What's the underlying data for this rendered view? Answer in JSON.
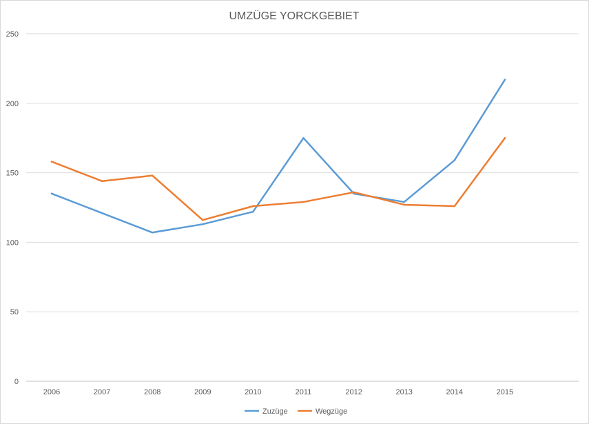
{
  "chart_data": {
    "type": "line",
    "title": "UMZÜGE YORCKGEBIET",
    "categories": [
      "2006",
      "2007",
      "2008",
      "2009",
      "2010",
      "2011",
      "2012",
      "2013",
      "2014",
      "2015"
    ],
    "ylim": [
      0,
      250
    ],
    "yticks": [
      0,
      50,
      100,
      150,
      200,
      250
    ],
    "grid": true,
    "legend_position": "bottom",
    "series": [
      {
        "name": "Zuzüge",
        "color": "#5b9bd5",
        "values": [
          135,
          121,
          107,
          113,
          122,
          175,
          135,
          129,
          159,
          217
        ]
      },
      {
        "name": "Wegzüge",
        "color": "#ed7d31",
        "values": [
          158,
          144,
          148,
          116,
          126,
          129,
          136,
          127,
          126,
          175
        ]
      }
    ]
  }
}
